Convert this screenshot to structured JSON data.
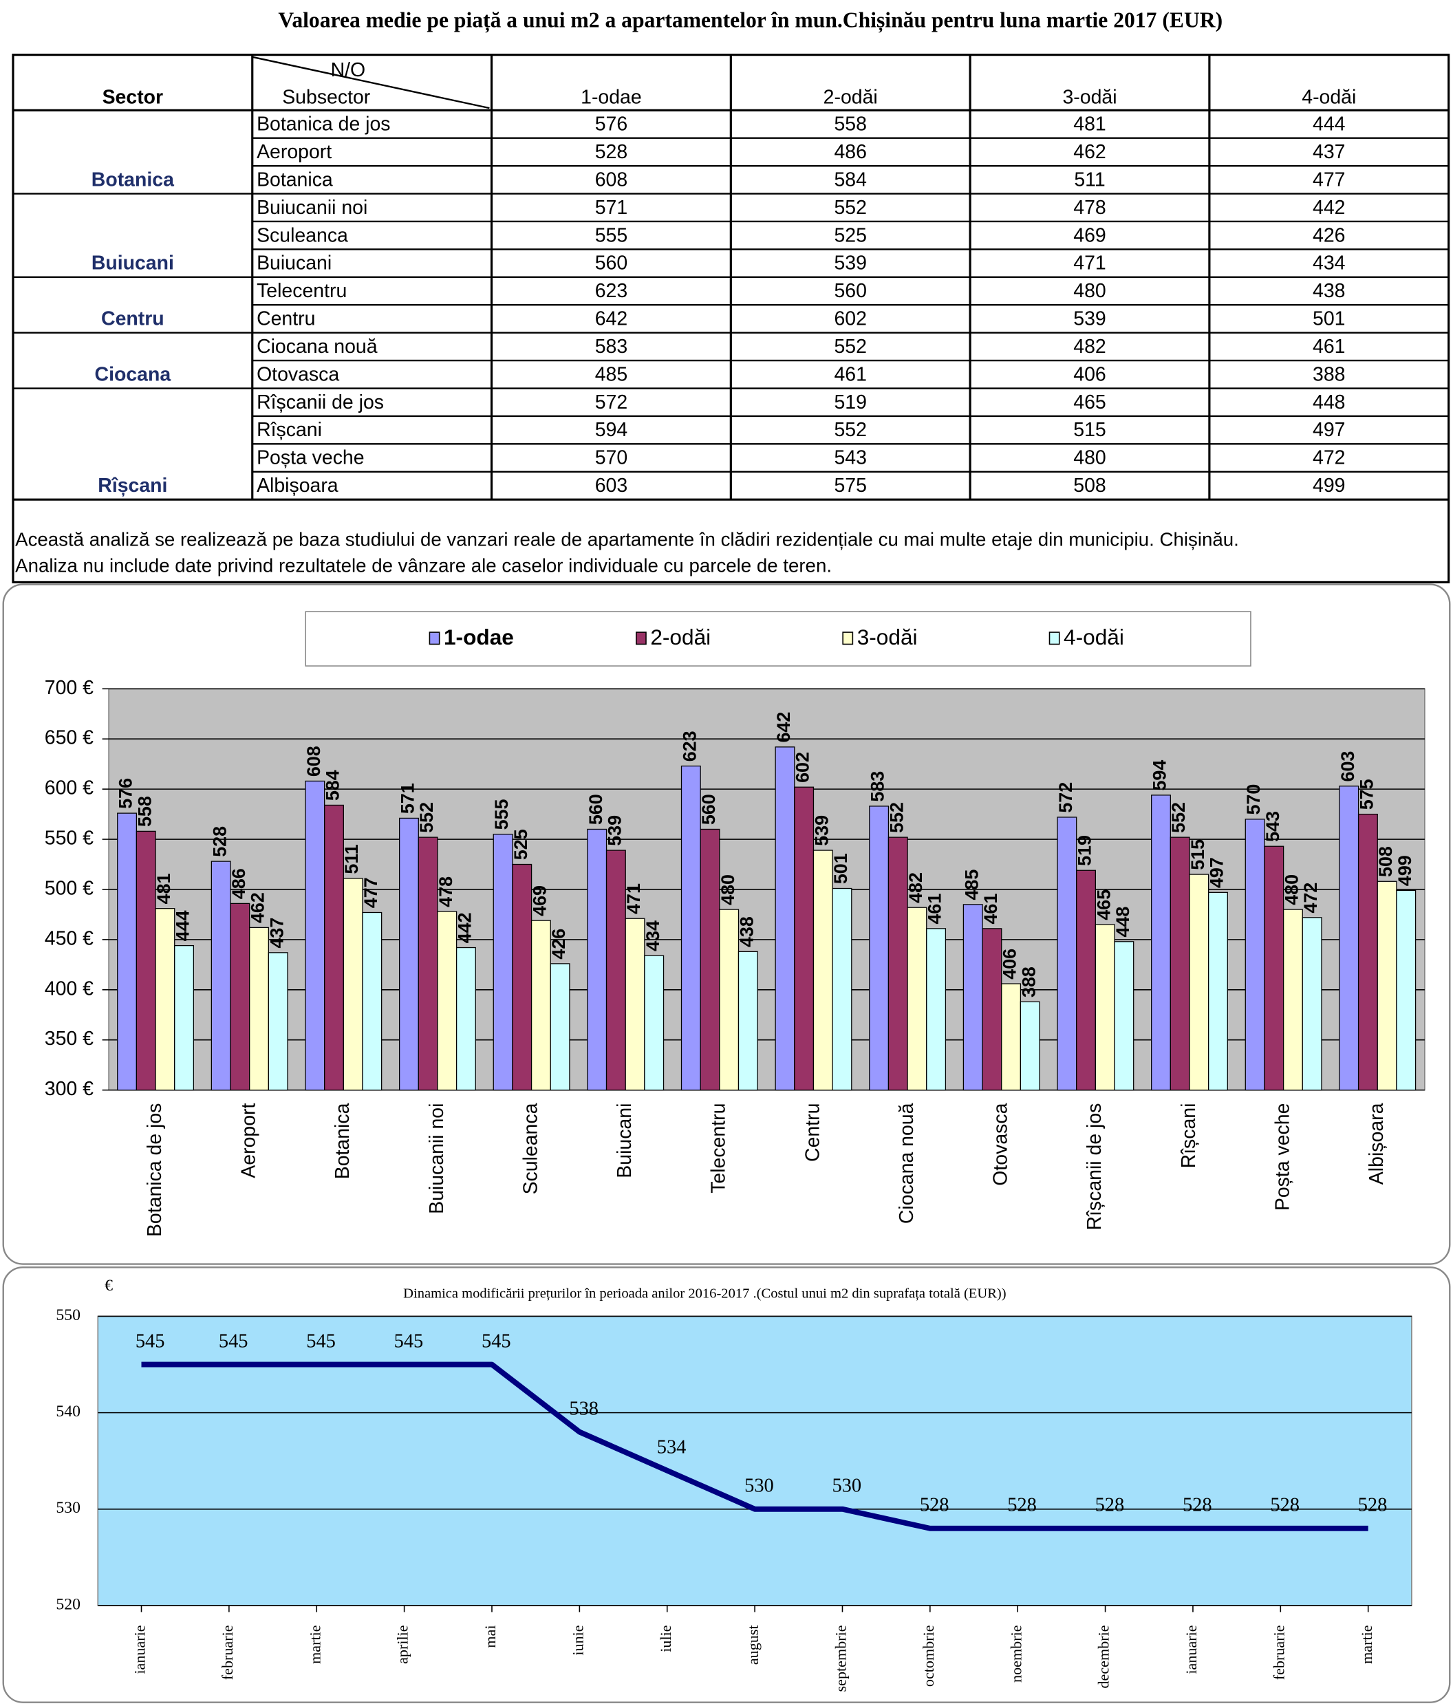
{
  "title": "Valoarea medie pe piață a unui m2 a apartamentelor în mun.Chișinău pentru luna martie 2017 (EUR)",
  "table": {
    "header": {
      "sector": "Sector",
      "no": "N/O",
      "subsector": "Subsector",
      "columns": [
        "1-odae",
        "2-odăi",
        "3-odăi",
        "4-odăi"
      ]
    },
    "groups": [
      {
        "sector": "Botanica",
        "rows": [
          {
            "subsector": "Botanica de jos",
            "values": [
              576,
              558,
              481,
              444
            ]
          },
          {
            "subsector": "Aeroport",
            "values": [
              528,
              486,
              462,
              437
            ]
          },
          {
            "subsector": "Botanica",
            "values": [
              608,
              584,
              511,
              477
            ]
          }
        ]
      },
      {
        "sector": "Buiucani",
        "rows": [
          {
            "subsector": "Buiucanii noi",
            "values": [
              571,
              552,
              478,
              442
            ]
          },
          {
            "subsector": "Sculeanca",
            "values": [
              555,
              525,
              469,
              426
            ]
          },
          {
            "subsector": "Buiucani",
            "values": [
              560,
              539,
              471,
              434
            ]
          }
        ]
      },
      {
        "sector": "Centru",
        "rows": [
          {
            "subsector": "Telecentru",
            "values": [
              623,
              560,
              480,
              438
            ]
          },
          {
            "subsector": "Centru",
            "values": [
              642,
              602,
              539,
              501
            ]
          }
        ]
      },
      {
        "sector": "Ciocana",
        "rows": [
          {
            "subsector": "Ciocana nouă",
            "values": [
              583,
              552,
              482,
              461
            ]
          },
          {
            "subsector": "Otovasca",
            "values": [
              485,
              461,
              406,
              388
            ]
          }
        ]
      },
      {
        "sector": "Rîșcani",
        "rows": [
          {
            "subsector": "Rîșcanii de jos",
            "values": [
              572,
              519,
              465,
              448
            ]
          },
          {
            "subsector": "Rîșcani",
            "values": [
              594,
              552,
              515,
              497
            ]
          },
          {
            "subsector": "Poșta veche",
            "values": [
              570,
              543,
              480,
              472
            ]
          },
          {
            "subsector": "Albișoara",
            "values": [
              603,
              575,
              508,
              499
            ]
          }
        ]
      }
    ],
    "note": [
      "Această analiză se realizează pe baza studiului de vanzari reale de apartamente în clădiri rezidențiale cu mai multe etaje din municipiu. Chișinău.",
      "Analiza nu include date privind rezultatele de vânzare ale caselor individuale cu parcele de teren."
    ]
  },
  "chart_data": [
    {
      "type": "bar",
      "categories": [
        "Botanica de jos",
        "Aeroport",
        "Botanica",
        "Buiucanii noi",
        "Sculeanca",
        "Buiucani",
        "Telecentru",
        "Centru",
        "Ciocana nouă",
        "Otovasca",
        "Rîșcanii de jos",
        "Rîșcani",
        "Poșta veche",
        "Albișoara"
      ],
      "series": [
        {
          "name": "1-odae",
          "color": "#9999ff",
          "values": [
            576,
            528,
            608,
            571,
            555,
            560,
            623,
            642,
            583,
            485,
            572,
            594,
            570,
            603
          ]
        },
        {
          "name": "2-odăi",
          "color": "#993366",
          "values": [
            558,
            486,
            584,
            552,
            525,
            539,
            560,
            602,
            552,
            461,
            519,
            552,
            543,
            575
          ]
        },
        {
          "name": "3-odăi",
          "color": "#ffffcc",
          "values": [
            481,
            462,
            511,
            478,
            469,
            471,
            480,
            539,
            482,
            406,
            465,
            515,
            480,
            508
          ]
        },
        {
          "name": "4-odăi",
          "color": "#ccffff",
          "values": [
            444,
            437,
            477,
            442,
            426,
            434,
            438,
            501,
            461,
            388,
            448,
            497,
            472,
            499
          ]
        }
      ],
      "ylim": [
        300,
        700
      ],
      "yticks": [
        {
          "value": 300,
          "label": "300 €"
        },
        {
          "value": 350,
          "label": "350 €"
        },
        {
          "value": 400,
          "label": "400 €"
        },
        {
          "value": 450,
          "label": "450 €"
        },
        {
          "value": 500,
          "label": "500 €"
        },
        {
          "value": 550,
          "label": "550 €"
        },
        {
          "value": 600,
          "label": "600 €"
        },
        {
          "value": 650,
          "label": "650 €"
        },
        {
          "value": 700,
          "label": "700 €"
        }
      ],
      "grid": true,
      "legend": "top"
    },
    {
      "type": "line",
      "title": "Dinamica modificării prețurilor în perioada anilor 2016-2017 .(Costul unui m2 din suprafața totală (EUR))",
      "y_label": "€",
      "categories": [
        "ianuarie",
        "februarie",
        "martie",
        "aprilie",
        "mai",
        "iunie",
        "iulie",
        "august",
        "septembrie",
        "octombrie",
        "noembrie",
        "decembrie",
        "ianuarie",
        "februarie",
        "martie"
      ],
      "values": [
        545,
        545,
        545,
        545,
        545,
        538,
        534,
        530,
        530,
        528,
        528,
        528,
        528,
        528,
        528
      ],
      "color": "#000080",
      "ylim": [
        520,
        550
      ],
      "yticks": [
        520,
        530,
        540,
        550
      ],
      "grid": true
    }
  ]
}
